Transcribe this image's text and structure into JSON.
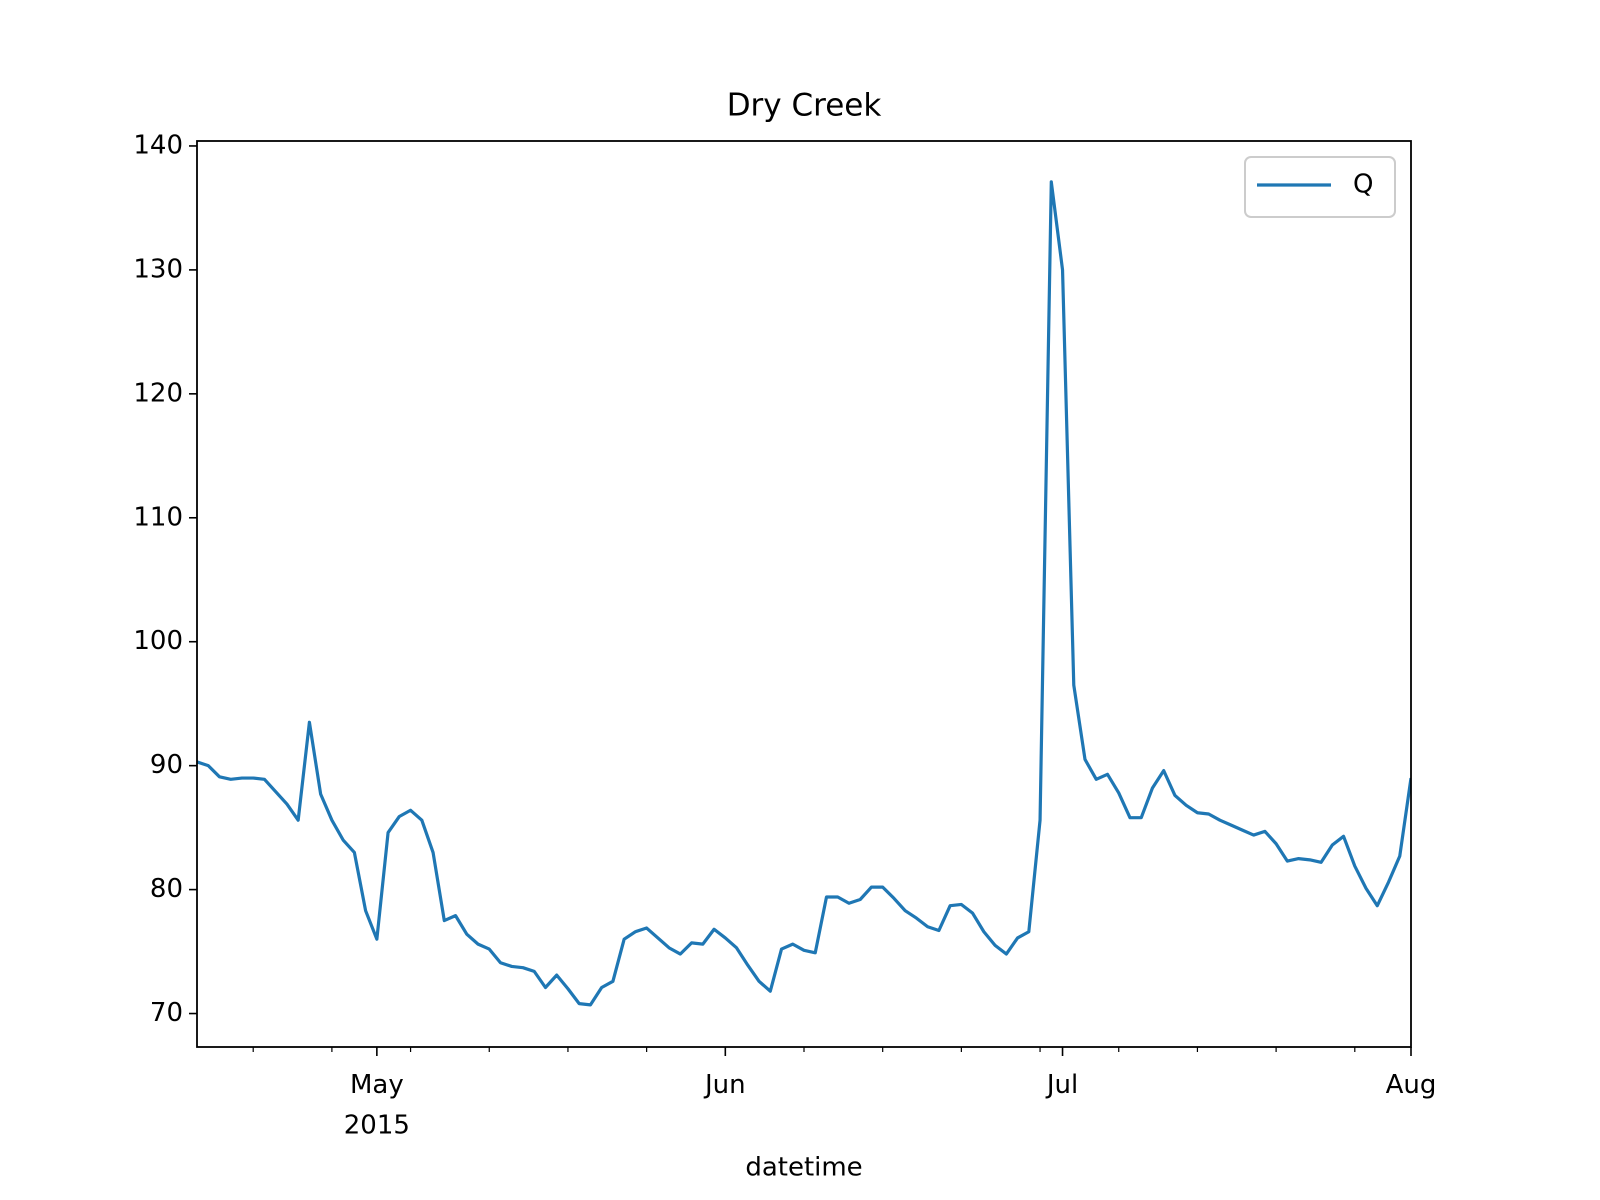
{
  "chart_data": {
    "type": "line",
    "title": "Dry Creek",
    "x_label": "datetime",
    "xlim": [
      0,
      108
    ],
    "xticks": [
      {
        "value": 16,
        "label": "May\n2015"
      },
      {
        "value": 47,
        "label": "Jun"
      },
      {
        "value": 77,
        "label": "Jul"
      },
      {
        "value": 108,
        "label": "Aug"
      }
    ],
    "xminorticks": [
      5,
      12,
      19,
      26,
      33,
      40,
      54,
      61,
      68,
      75,
      82,
      89,
      96,
      103
    ],
    "ylim": [
      67.3,
      140.4
    ],
    "yticks": [
      70,
      80,
      90,
      100,
      110,
      120,
      130,
      140
    ],
    "legend": "upper right",
    "series": [
      {
        "name": "Q",
        "color": "#1f77b4",
        "values": [
          90.3,
          90.0,
          89.1,
          88.9,
          89.0,
          89.0,
          88.9,
          87.9,
          86.9,
          85.6,
          93.5,
          87.7,
          85.6,
          84.0,
          83.0,
          78.3,
          76.0,
          84.6,
          85.9,
          86.4,
          85.6,
          83.0,
          77.5,
          77.9,
          76.4,
          75.6,
          75.2,
          74.1,
          73.8,
          73.7,
          73.4,
          72.1,
          73.1,
          72.0,
          70.8,
          70.7,
          72.1,
          72.6,
          76.0,
          76.6,
          76.9,
          76.1,
          75.3,
          74.8,
          75.7,
          75.6,
          76.8,
          76.1,
          75.3,
          73.9,
          72.6,
          71.8,
          75.2,
          75.6,
          75.1,
          74.9,
          79.4,
          79.4,
          78.9,
          79.2,
          80.2,
          80.2,
          79.3,
          78.3,
          77.7,
          77.0,
          76.7,
          78.7,
          78.8,
          78.1,
          76.6,
          75.5,
          74.8,
          76.1,
          76.6,
          85.6,
          137.1,
          130.0,
          96.5,
          90.5,
          88.9,
          89.3,
          87.8,
          85.8,
          85.8,
          88.2,
          89.6,
          87.6,
          86.8,
          86.2,
          86.1,
          85.6,
          85.2,
          84.8,
          84.4,
          84.7,
          83.7,
          82.3,
          82.5,
          82.4,
          82.2,
          83.6,
          84.3,
          81.9,
          80.1,
          78.7,
          80.6,
          82.7,
          89.0
        ]
      }
    ]
  }
}
